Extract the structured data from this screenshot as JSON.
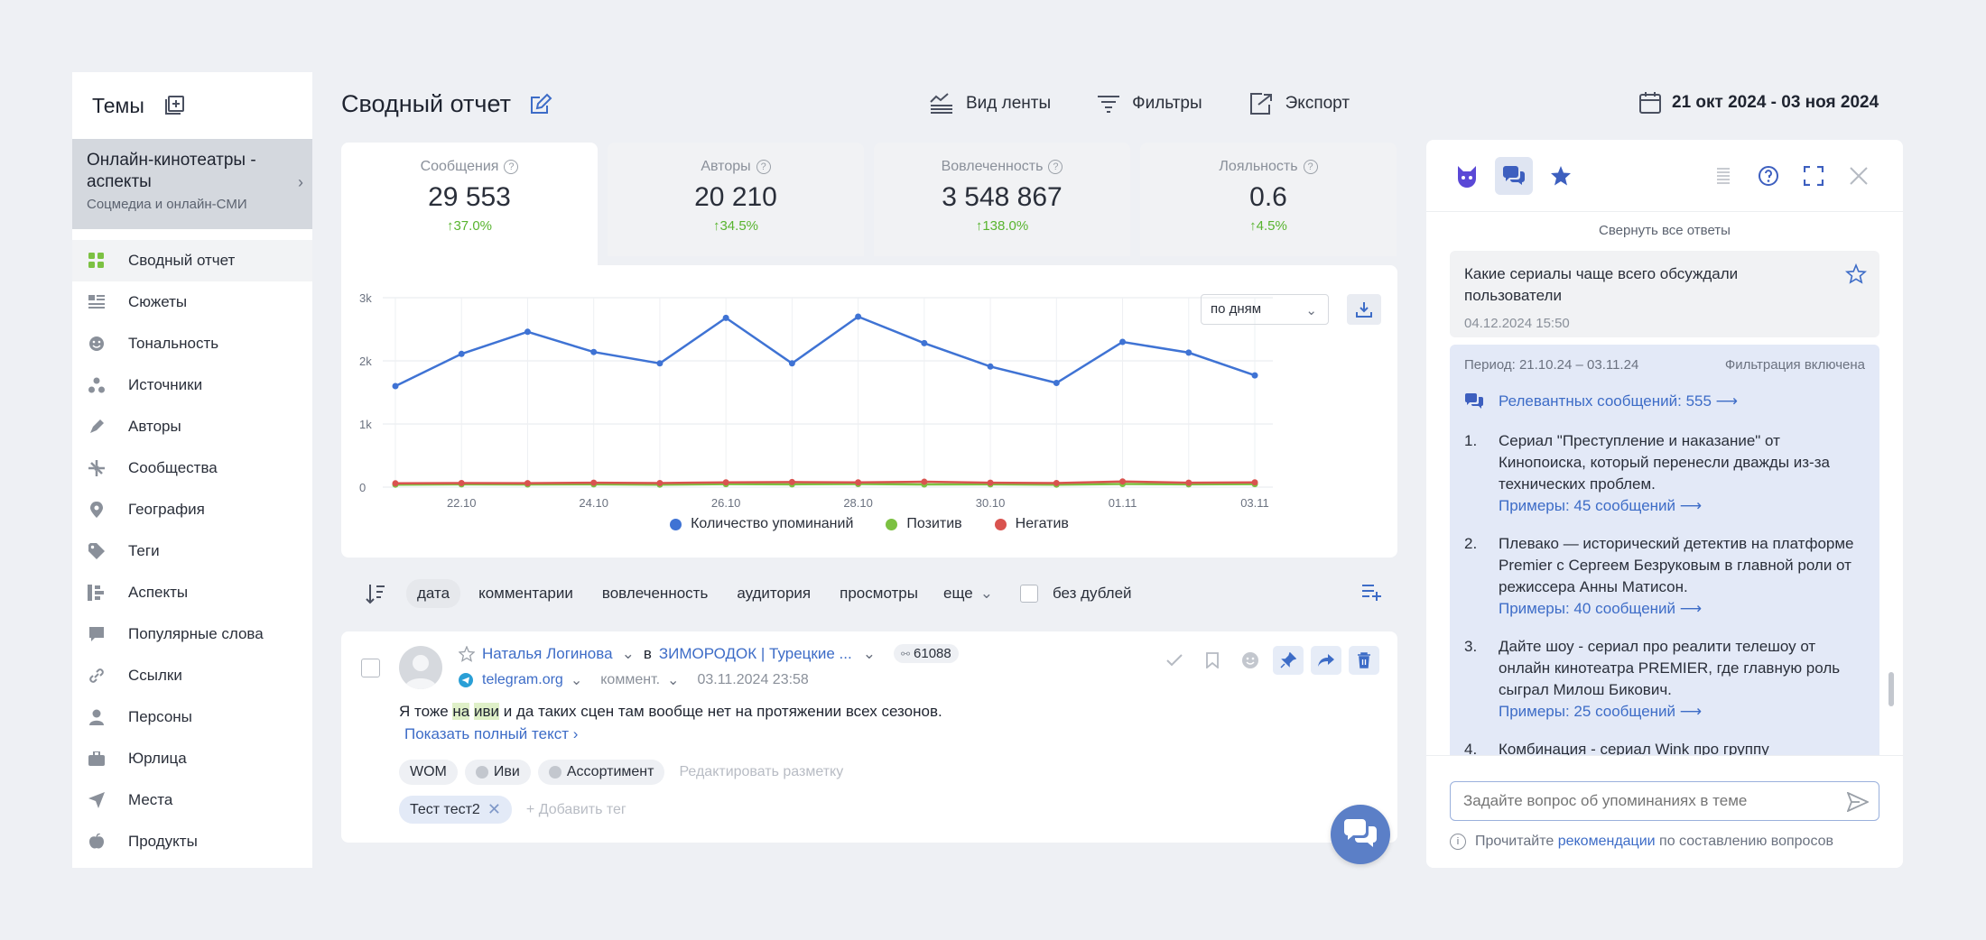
{
  "sidebar": {
    "title": "Темы",
    "topic": {
      "title": "Онлайн-кинотеатры - аспекты",
      "subtitle": "Соцмедиа и онлайн-СМИ"
    },
    "items": [
      {
        "label": "Сводный отчет",
        "icon": "grid-icon",
        "active": true
      },
      {
        "label": "Сюжеты",
        "icon": "stories-icon"
      },
      {
        "label": "Тональность",
        "icon": "smile-icon"
      },
      {
        "label": "Источники",
        "icon": "sources-icon"
      },
      {
        "label": "Авторы",
        "icon": "pen-icon"
      },
      {
        "label": "Сообщества",
        "icon": "communities-icon"
      },
      {
        "label": "География",
        "icon": "location-pin-icon"
      },
      {
        "label": "Теги",
        "icon": "tag-icon"
      },
      {
        "label": "Аспекты",
        "icon": "aspects-icon"
      },
      {
        "label": "Популярные слова",
        "icon": "speech-bubble-icon"
      },
      {
        "label": "Ссылки",
        "icon": "link-icon"
      },
      {
        "label": "Персоны",
        "icon": "person-icon"
      },
      {
        "label": "Юрлица",
        "icon": "briefcase-icon"
      },
      {
        "label": "Места",
        "icon": "navigation-arrow-icon"
      },
      {
        "label": "Продукты",
        "icon": "apple-icon"
      }
    ]
  },
  "header": {
    "title": "Сводный отчет",
    "actions": {
      "feed_view": "Вид ленты",
      "filters": "Фильтры",
      "export": "Экспорт"
    },
    "date_range": "21 окт 2024 - 03 ноя 2024"
  },
  "kpis": [
    {
      "label": "Сообщения",
      "value": "29 553",
      "delta": "↑37.0%"
    },
    {
      "label": "Авторы",
      "value": "20 210",
      "delta": "↑34.5%"
    },
    {
      "label": "Вовлеченность",
      "value": "3 548 867",
      "delta": "↑138.0%"
    },
    {
      "label": "Лояльность",
      "value": "0.6",
      "delta": "↑4.5%"
    }
  ],
  "chart": {
    "period_select": "по дням",
    "legend": {
      "mentions": "Количество упоминаний",
      "positive": "Позитив",
      "negative": "Негатив"
    }
  },
  "chart_data": {
    "type": "line",
    "x": [
      "21.10",
      "22.10",
      "23.10",
      "24.10",
      "25.10",
      "26.10",
      "27.10",
      "28.10",
      "29.10",
      "30.10",
      "31.10",
      "01.11",
      "02.11",
      "03.11"
    ],
    "x_tick_labels": [
      "22.10",
      "24.10",
      "26.10",
      "28.10",
      "30.10",
      "01.11",
      "03.11"
    ],
    "y_tick_labels": [
      "0",
      "1k",
      "2k",
      "3k"
    ],
    "ylim": [
      0,
      3000
    ],
    "grid": true,
    "legend_position": "bottom",
    "series": [
      {
        "name": "Количество упоминаний",
        "color": "#3f73d4",
        "values": [
          1600,
          2110,
          2460,
          2140,
          1960,
          2680,
          1960,
          2700,
          2280,
          1910,
          1650,
          2300,
          2130,
          1770
        ]
      },
      {
        "name": "Позитив",
        "color": "#7cc142",
        "values": [
          40,
          45,
          42,
          45,
          40,
          48,
          45,
          50,
          42,
          45,
          40,
          50,
          45,
          48
        ]
      },
      {
        "name": "Негатив",
        "color": "#d9534f",
        "values": [
          60,
          65,
          62,
          70,
          65,
          75,
          80,
          75,
          85,
          70,
          65,
          90,
          70,
          75
        ]
      }
    ]
  },
  "sortbar": {
    "options": [
      "дата",
      "комментарии",
      "вовлеченность",
      "аудитория",
      "просмотры"
    ],
    "more": "еще",
    "no_duplicates": "без дублей"
  },
  "message": {
    "author": "Наталья Логинова",
    "in": "в",
    "community": "ЗИМОРОДОК | Турецкие ...",
    "reach": "61088",
    "source": "telegram.org",
    "type": "коммент.",
    "datetime": "03.11.2024 23:58",
    "text": {
      "before": "Я тоже ",
      "hl1": "на",
      "mid": " ",
      "hl2": "иви",
      "after": " и да таких сцен там вообще нет на протяжении всех сезонов.",
      "show_full": "Показать полный текст ›"
    },
    "tags": [
      "WOM",
      "Иви",
      "Ассортимент"
    ],
    "edit_markup": "Редактировать разметку",
    "user_tag": "Тест тест2",
    "add_tag": "+ Добавить тег"
  },
  "panel": {
    "collapse_all": "Свернуть все ответы",
    "question": "Какие сериалы чаще всего обсуждали пользователи",
    "question_date": "04.12.2024 15:50",
    "period": "Период: 21.10.24 – 03.11.24",
    "filter_on": "Фильтрация включена",
    "relevant": "Релевантных сообщений: 555 ⟶",
    "answers": [
      {
        "n": "1.",
        "text": "Сериал \"Преступление и наказание\" от Кинопоиска, который перенесли дважды из-за технических проблем.",
        "examples": "Примеры: 45 сообщений ⟶"
      },
      {
        "n": "2.",
        "text": "Плевако — исторический детектив на платформе Premier с Сергеем Безруковым в главной роли от режиссера Анны Матисон.",
        "examples": "Примеры: 40 сообщений ⟶"
      },
      {
        "n": "3.",
        "text": "Дайте шоу - сериал про реалити телешоу от онлайн кинотеатра PREMIER, где главную роль сыграл Милош Бикович.",
        "examples": "Примеры: 25 сообщений ⟶"
      },
      {
        "n": "4.",
        "text": "Комбинация - сериал Wink про группу",
        "examples": ""
      }
    ],
    "input_placeholder": "Задайте вопрос об упоминаниях в теме",
    "hint_before": "Прочитайте ",
    "hint_link": "рекомендации",
    "hint_after": " по составлению вопросов"
  }
}
